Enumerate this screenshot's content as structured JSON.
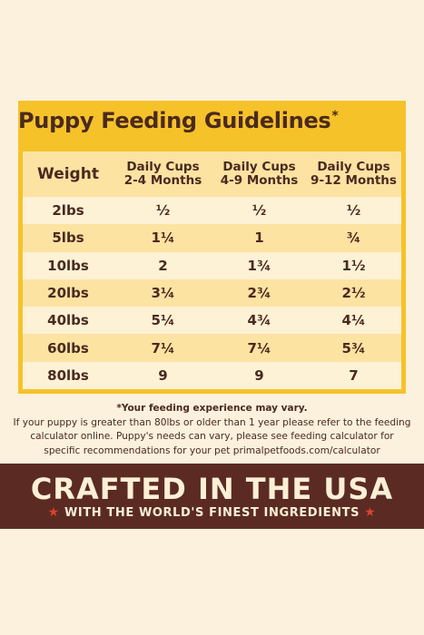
{
  "title": "Puppy Feeding Guidelines",
  "title_mark": "*",
  "table": {
    "headers": [
      [
        "Weight"
      ],
      [
        "Daily Cups",
        "2-4 Months"
      ],
      [
        "Daily Cups",
        "4-9 Months"
      ],
      [
        "Daily Cups",
        "9-12 Months"
      ]
    ],
    "rows": [
      [
        "2lbs",
        "½",
        "½",
        "½"
      ],
      [
        "5lbs",
        "1¼",
        "1",
        "¾"
      ],
      [
        "10lbs",
        "2",
        "1¾",
        "1½"
      ],
      [
        "20lbs",
        "3¼",
        "2¾",
        "2½"
      ],
      [
        "40lbs",
        "5¼",
        "4¾",
        "4¼"
      ],
      [
        "60lbs",
        "7¼",
        "7¼",
        "5¾"
      ],
      [
        "80lbs",
        "9",
        "9",
        "7"
      ]
    ]
  },
  "disclaimer": {
    "note": "*Your feeding experience may vary.",
    "line1": "If your puppy is greater than 80lbs or older than 1 year please refer to the feeding",
    "line2": "calculator online. Puppy's needs can vary, please see feeding calculator for",
    "line3": "specific recommendations for your pet primalpetfoods.com/calculator"
  },
  "banner": {
    "title": "CRAFTED IN THE USA",
    "subtitle": "WITH THE WORLD'S FINEST INGREDIENTS",
    "star": "★"
  },
  "colors": {
    "background": "#fbf1dc",
    "accent_yellow": "#f6c22a",
    "row_light": "#fdf1d6",
    "row_dark": "#fde3a2",
    "text_brown": "#4a2a1f",
    "banner_brown": "#5b2b23",
    "star_red": "#d9432f"
  }
}
